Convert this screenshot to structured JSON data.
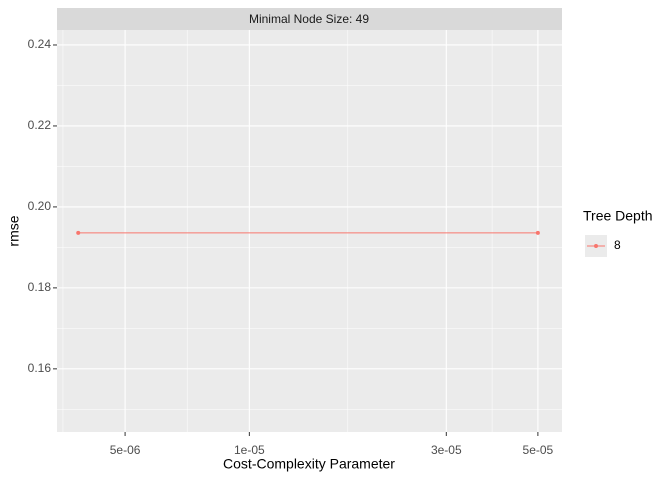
{
  "chart_data": {
    "type": "line",
    "facet_label": "Minimal Node Size: 49",
    "x_label": "Cost-Complexity Parameter",
    "y_label": "rmse",
    "legend_title": "Tree Depth",
    "x": [
      3.85e-06,
      5e-05
    ],
    "series": [
      {
        "name": "8",
        "color": "#F8766D",
        "values": [
          0.1936,
          0.1936
        ]
      }
    ],
    "xlog": true,
    "xlim": [
      3.42e-06,
      5.72e-05
    ],
    "xticks": [
      {
        "value": 5e-06,
        "label": "5e-06"
      },
      {
        "value": 1e-05,
        "label": "1e-05"
      },
      {
        "value": 3e-05,
        "label": "3e-05"
      },
      {
        "value": 5e-05,
        "label": "5e-05"
      }
    ],
    "ylim": [
      0.1444,
      0.2437
    ],
    "yticks": [
      0.16,
      0.18,
      {
        "value": 0.2,
        "label": "0.20"
      },
      0.22,
      0.24
    ],
    "grid": true
  }
}
